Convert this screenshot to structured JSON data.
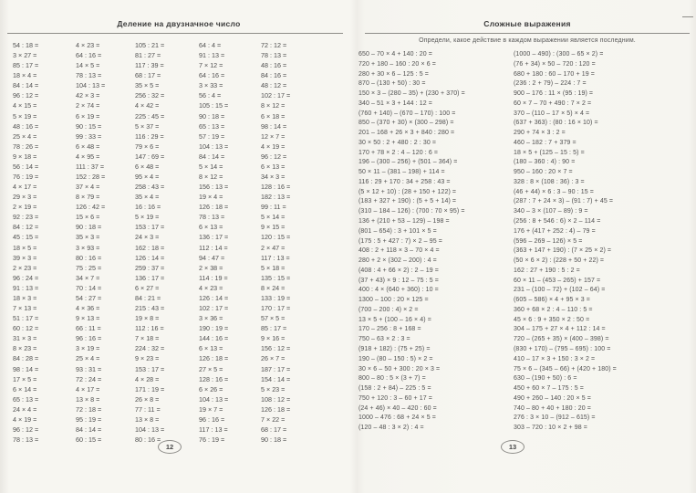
{
  "left_page": {
    "title": "Деление на двузначное число",
    "page_number": "12",
    "columns": [
      [
        "54 : 18 =",
        "3 × 27 =",
        "85 : 17 =",
        "18 × 4 =",
        "84 : 14 =",
        "96 : 12 =",
        "4 × 15 =",
        "5 × 19 =",
        "48 : 16 =",
        "25 × 4 =",
        "78 : 26 =",
        "9 × 18 =",
        "56 : 14 =",
        "76 : 19 =",
        "4 × 17 =",
        "29 × 3 =",
        "2 × 19 =",
        "92 : 23 =",
        "84 : 12 =",
        "45 : 15 =",
        "18 × 5 =",
        "39 × 3 =",
        "2 × 23 =",
        "96 : 24 =",
        "91 : 13 =",
        "18 × 3 =",
        "7 × 13 =",
        "51 : 17 =",
        "60 : 12 =",
        "31 × 3 =",
        "8 × 23 =",
        "84 : 28 =",
        "98 : 14 =",
        "17 × 5 =",
        "6 × 14 =",
        "65 : 13 =",
        "24 × 4 =",
        "4 × 19 =",
        "96 : 12 =",
        "78 : 13 ="
      ],
      [
        "4 × 23 =",
        "64 : 16 =",
        "14 × 5 =",
        "78 : 13 =",
        "104 : 13 =",
        "42 × 3 =",
        "2 × 74 =",
        "6 × 19 =",
        "90 : 15 =",
        "99 : 33 =",
        "6 × 48 =",
        "4 × 95 =",
        "111 : 37 =",
        "152 : 28 =",
        "37 × 4 =",
        "8 × 79 =",
        "126 : 42 =",
        "15 × 6 =",
        "90 : 18 =",
        "35 × 3 =",
        "3 × 93 =",
        "80 : 16 =",
        "75 : 25 =",
        "34 × 7 =",
        "70 : 14 =",
        "54 : 27 =",
        "4 × 36 =",
        "9 × 13 =",
        "66 : 11 =",
        "96 : 16 =",
        "3 × 19 =",
        "25 × 4 =",
        "93 : 31 =",
        "72 : 24 =",
        "4 × 17 =",
        "13 × 8 =",
        "72 : 18 =",
        "95 : 19 =",
        "84 : 14 =",
        "60 : 15 ="
      ],
      [
        "105 : 21 =",
        "81 : 27 =",
        "117 : 39 =",
        "68 : 17 =",
        "35 × 5 =",
        "256 : 32 =",
        "4 × 42 =",
        "225 : 45 =",
        "5 × 37 =",
        "116 : 29 =",
        "79 × 6 =",
        "147 : 69 =",
        "6 × 48 =",
        "95 × 4 =",
        "258 : 43 =",
        "35 × 4 =",
        "16 : 16 =",
        "5 × 19 =",
        "153 : 17 =",
        "24 × 3 =",
        "162 : 18 =",
        "126 : 14 =",
        "259 : 37 =",
        "136 : 17 =",
        "6 × 27 =",
        "84 : 21 =",
        "215 : 43 =",
        "19 × 8 =",
        "112 : 16 =",
        "7 × 18 =",
        "224 : 32 =",
        "9 × 23 =",
        "153 : 17 =",
        "4 × 28 =",
        "171 : 19 =",
        "26 × 8 =",
        "77 : 11 =",
        "13 × 8 =",
        "104 : 13 =",
        "80 : 16 ="
      ],
      [
        "64 : 4 =",
        "91 : 13 =",
        "7 × 12 =",
        "64 : 16 =",
        "3 × 33 =",
        "56 : 4 =",
        "105 : 15 =",
        "90 : 18 =",
        "65 : 13 =",
        "57 : 19 =",
        "104 : 13 =",
        "84 : 14 =",
        "5 × 14 =",
        "8 × 12 =",
        "156 : 13 =",
        "19 × 4 =",
        "126 : 18 =",
        "78 : 13 =",
        "6 × 13 =",
        "136 : 17 =",
        "112 : 14 =",
        "94 : 47 =",
        "2 × 38 =",
        "114 : 19 =",
        "4 × 23 =",
        "126 : 14 =",
        "102 : 17 =",
        "3 × 36 =",
        "190 : 19 =",
        "144 : 16 =",
        "6 × 13 =",
        "126 : 18 =",
        "27 × 5 =",
        "128 : 16 =",
        "6 × 26 =",
        "104 : 13 =",
        "19 × 7 =",
        "96 : 16 =",
        "117 : 13 =",
        "76 : 19 ="
      ],
      [
        "72 : 12 =",
        "78 : 13 =",
        "48 : 16 =",
        "84 : 16 =",
        "48 : 12 =",
        "102 : 17 =",
        "8 × 12 =",
        "6 × 18 =",
        "98 : 14 =",
        "12 × 7 =",
        "4 × 19 =",
        "96 : 12 =",
        "6 × 13 =",
        "34 × 3 =",
        "128 : 16 =",
        "182 : 13 =",
        "99 : 11 =",
        "5 × 14 =",
        "9 × 15 =",
        "120 : 15 =",
        "2 × 47 =",
        "117 : 13 =",
        "5 × 18 =",
        "135 : 15 =",
        "8 × 24 =",
        "133 : 19 =",
        "170 : 17 =",
        "57 × 5 =",
        "85 : 17 =",
        "9 × 16 =",
        "156 : 12 =",
        "26 × 7 =",
        "187 : 17 =",
        "154 : 14 =",
        "5 × 23 =",
        "108 : 12 =",
        "126 : 18 =",
        "7 × 22 =",
        "68 : 17 =",
        "90 : 18 ="
      ]
    ]
  },
  "right_page": {
    "title": "Сложные выражения",
    "instruction": "Определи, какое действие в каждом выражении является последним.",
    "page_number": "13",
    "columns": [
      [
        "650 – 70 × 4 + 140 : 20 =",
        "720 + 180 – 160 : 20 × 6 =",
        "280 + 30 × 6 – 125 : 5 =",
        "870 – (130 + 50) : 30 =",
        "150 × 3 – (280 – 35) + (230 + 370) =",
        "340 – 51 × 3 + 144 : 12 =",
        "(760 + 140) – (670 – 170) : 100 =",
        "850 – (370 + 30) × (300 – 298) =",
        "201 – 168 + 26 × 3 + 840 : 280 =",
        "30 × 50 : 2 + 480 : 2 : 30 =",
        "170 + 78 × 2 : 4 – 120 : 6 =",
        "196 – (300 – 256) + (501 – 364) =",
        "50 × 11 – (381 – 198) + 114 =",
        "116 : 29 + 170 : 34 + 258 : 43 =",
        "(5 × 12 + 10) : (28 + 150 + 122) =",
        "(183 + 327 + 190) : (5 + 5 + 14) =",
        "(310 – 184 – 126) : (700 : 70 × 95) =",
        "136 + (210 + 53 – 129) – 198 =",
        "(801 – 654) : 3 + 101 × 5 =",
        "(175 : 5 + 427 : 7) × 2 – 95 =",
        "408 : 2 + 118 × 3 – 70 × 4 =",
        "280 + 2 × (302 – 200) : 4 =",
        "(408 : 4 + 66 × 2) : 2 – 19 =",
        "(37 + 43) × 9 : 12 – 75 : 5 =",
        "400 : 4 × (640 + 360) : 10 =",
        "1300 – 100 : 20 × 125 =",
        "(700 – 200 : 4) × 2 =",
        "13 × 5 + (100 – 16 × 4) =",
        "170 – 256 : 8 + 168 =",
        "750 – 63 × 2 : 3 =",
        "(918 + 182) : (75 + 25) =",
        "190 – (80 – 150 : 5) × 2 =",
        "30 × 6 – 50 + 300 : 20 × 3 =",
        "800 – 80 : 5 × (3 + 7) =",
        "(158 : 2 + 84) – 225 : 5 =",
        "750 + 120 : 3 – 60 + 17 =",
        "(24 + 46) × 40 – 420 : 60 =",
        "1000 – 476 : 68 + 24 × 5 =",
        "(120 – 48 : 3 × 2) : 4 ="
      ],
      [
        "(1000 – 490) : (300 – 65 × 2) =",
        "(76 + 34) × 50 – 720 : 120 =",
        "680 + 180 : 60 – 170 + 19 =",
        "(236 : 2 + 79) – 224 : 7 =",
        "900 – 176 : 11 × (95 : 19) =",
        "60 × 7 – 70 + 490 : 7 × 2 =",
        "370 – (110 – 17 × 5) × 4 =",
        "(637 + 363) : (80 : 16 × 10) =",
        "290 + 74 × 3 : 2 =",
        "460 – 182 : 7 + 379 =",
        "18 × 5 + (125 – 15 : 5) =",
        "(180 – 360 : 4) : 90 =",
        "950 – 160 : 20 × 7 =",
        "328 : 8 × (108 : 36) : 3 =",
        "(46 + 44) × 6 : 3 – 90 : 15 =",
        "(287 : 7 + 24 × 3) – (91 : 7) + 45 =",
        "340 – 3 × (107 – 89) : 9 =",
        "(256 : 8 + 546 : 6) × 2 – 114 =",
        "176 + (417 + 252 : 4) – 79 =",
        "(596 – 269 – 126) × 5 =",
        "(363 + 147 + 190) : (7 × 25 × 2) =",
        "(50 × 6 × 2) : (228 + 50 + 22) =",
        "162 : 27 + 190 : 5 : 2 =",
        "60 × 11 – (453 – 265) + 157 =",
        "231 – (100 – 72) + (102 – 64) =",
        "(605 – 586) × 4 + 95 × 3 =",
        "360 + 68 × 2 : 4 – 110 : 5 =",
        "45 × 6 : 9 + 350 × 2 : 50 =",
        "304 – 175 + 27 × 4 + 112 : 14 =",
        "720 – (265 + 35) × (400 – 398) =",
        "(830 + 170) – (795 – 695) : 100 =",
        "410 – 17 × 3 + 150 : 3 × 2 =",
        "75 × 6 – (345 – 66) + (420 + 180) =",
        "630 – (190 + 50) : 6 =",
        "450 + 60 × 7 – 175 : 5 =",
        "490 + 260 – 140 : 20 × 5 =",
        "740 – 80 + 40 + 180 : 20 =",
        "276 : 3 × 10 – (912 – 615) =",
        "303 – 720 : 10 × 2 + 98 ="
      ]
    ]
  },
  "colors": {
    "page_background": "#f7f6f1",
    "text": "#4f4f4f",
    "title": "#3a3a3a",
    "rule": "#8d8c88"
  }
}
